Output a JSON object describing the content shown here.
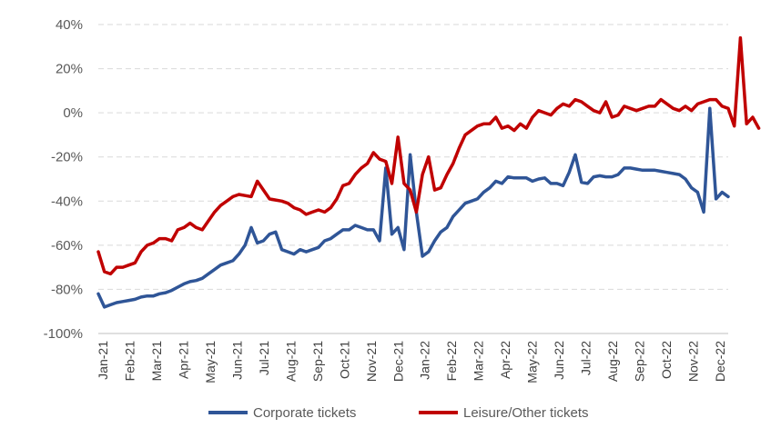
{
  "chart_data": {
    "type": "line",
    "title": "",
    "xlabel": "",
    "ylabel": "",
    "ylim": [
      -100,
      40
    ],
    "y_ticks": [
      40,
      20,
      0,
      -20,
      -40,
      -60,
      -80,
      -100
    ],
    "y_tick_labels": [
      "40%",
      "20%",
      "0%",
      "-20%",
      "-40%",
      "-60%",
      "-80%",
      "-100%"
    ],
    "x_ticks": [
      "Jan-21",
      "Feb-21",
      "Mar-21",
      "Apr-21",
      "May-21",
      "Jun-21",
      "Jul-21",
      "Aug-21",
      "Sep-21",
      "Oct-21",
      "Nov-21",
      "Dec-21",
      "Jan-22",
      "Feb-22",
      "Mar-22",
      "Apr-22",
      "May-22",
      "Jun-22",
      "Jul-22",
      "Aug-22",
      "Sep-22",
      "Oct-22",
      "Nov-22",
      "Dec-22"
    ],
    "grid": "horizontal-dashed",
    "legend_position": "bottom",
    "series": [
      {
        "name": "Corporate tickets",
        "color": "#2f5597",
        "values": [
          -82,
          -88,
          -87,
          -86,
          -85.5,
          -85,
          -84.5,
          -83.5,
          -83,
          -83,
          -82,
          -81.5,
          -80.5,
          -79,
          -77.5,
          -76.5,
          -76,
          -75,
          -73,
          -71,
          -69,
          -68,
          -67,
          -64,
          -60,
          -52,
          -59,
          -58,
          -55,
          -54,
          -62,
          -63,
          -64,
          -62,
          -63,
          -62,
          -61,
          -58,
          -57,
          -55,
          -53,
          -53,
          -51,
          -52,
          -53,
          -53,
          -58,
          -25,
          -55,
          -52,
          -62,
          -19,
          -45,
          -65,
          -63,
          -58,
          -54,
          -52,
          -47,
          -44,
          -41,
          -40,
          -39,
          -36,
          -34,
          -31,
          -32,
          -29,
          -29.5,
          -29.5,
          -29.5,
          -31,
          -30,
          -29.5,
          -32,
          -32,
          -33,
          -27,
          -19,
          -31.5,
          -32,
          -29,
          -28.5,
          -29,
          -29,
          -28,
          -25,
          -25,
          -25.5,
          -26,
          -26,
          -26,
          -26.5,
          -27,
          -27.5,
          -28,
          -30,
          -34,
          -36,
          -45,
          2,
          -39,
          -36,
          -38
        ]
      },
      {
        "name": "Leisure/Other tickets",
        "color": "#c00000",
        "values": [
          -63,
          -72,
          -73,
          -70,
          -70,
          -69,
          -68,
          -63,
          -60,
          -59,
          -57,
          -57,
          -58,
          -53,
          -52,
          -50,
          -52,
          -53,
          -49,
          -45,
          -42,
          -40,
          -38,
          -37,
          -37.5,
          -38,
          -31,
          -35,
          -39,
          -39.5,
          -40,
          -41,
          -43,
          -44,
          -46,
          -45,
          -44,
          -45,
          -43,
          -39,
          -33,
          -32,
          -28,
          -25,
          -23,
          -18,
          -21,
          -22,
          -32,
          -11,
          -32,
          -35,
          -45,
          -28,
          -20,
          -35,
          -34,
          -28,
          -23,
          -16,
          -10,
          -8,
          -6,
          -5,
          -5,
          -2,
          -7,
          -6,
          -8,
          -5,
          -7,
          -2,
          1,
          0,
          -1,
          2,
          4,
          3,
          6,
          5,
          3,
          1,
          0,
          5,
          -2,
          -1,
          3,
          2,
          1,
          2,
          3,
          3,
          6,
          4,
          2,
          1,
          3,
          1,
          4,
          5,
          6,
          6,
          3,
          2,
          -6,
          34,
          -5,
          -2,
          -7
        ]
      }
    ]
  }
}
